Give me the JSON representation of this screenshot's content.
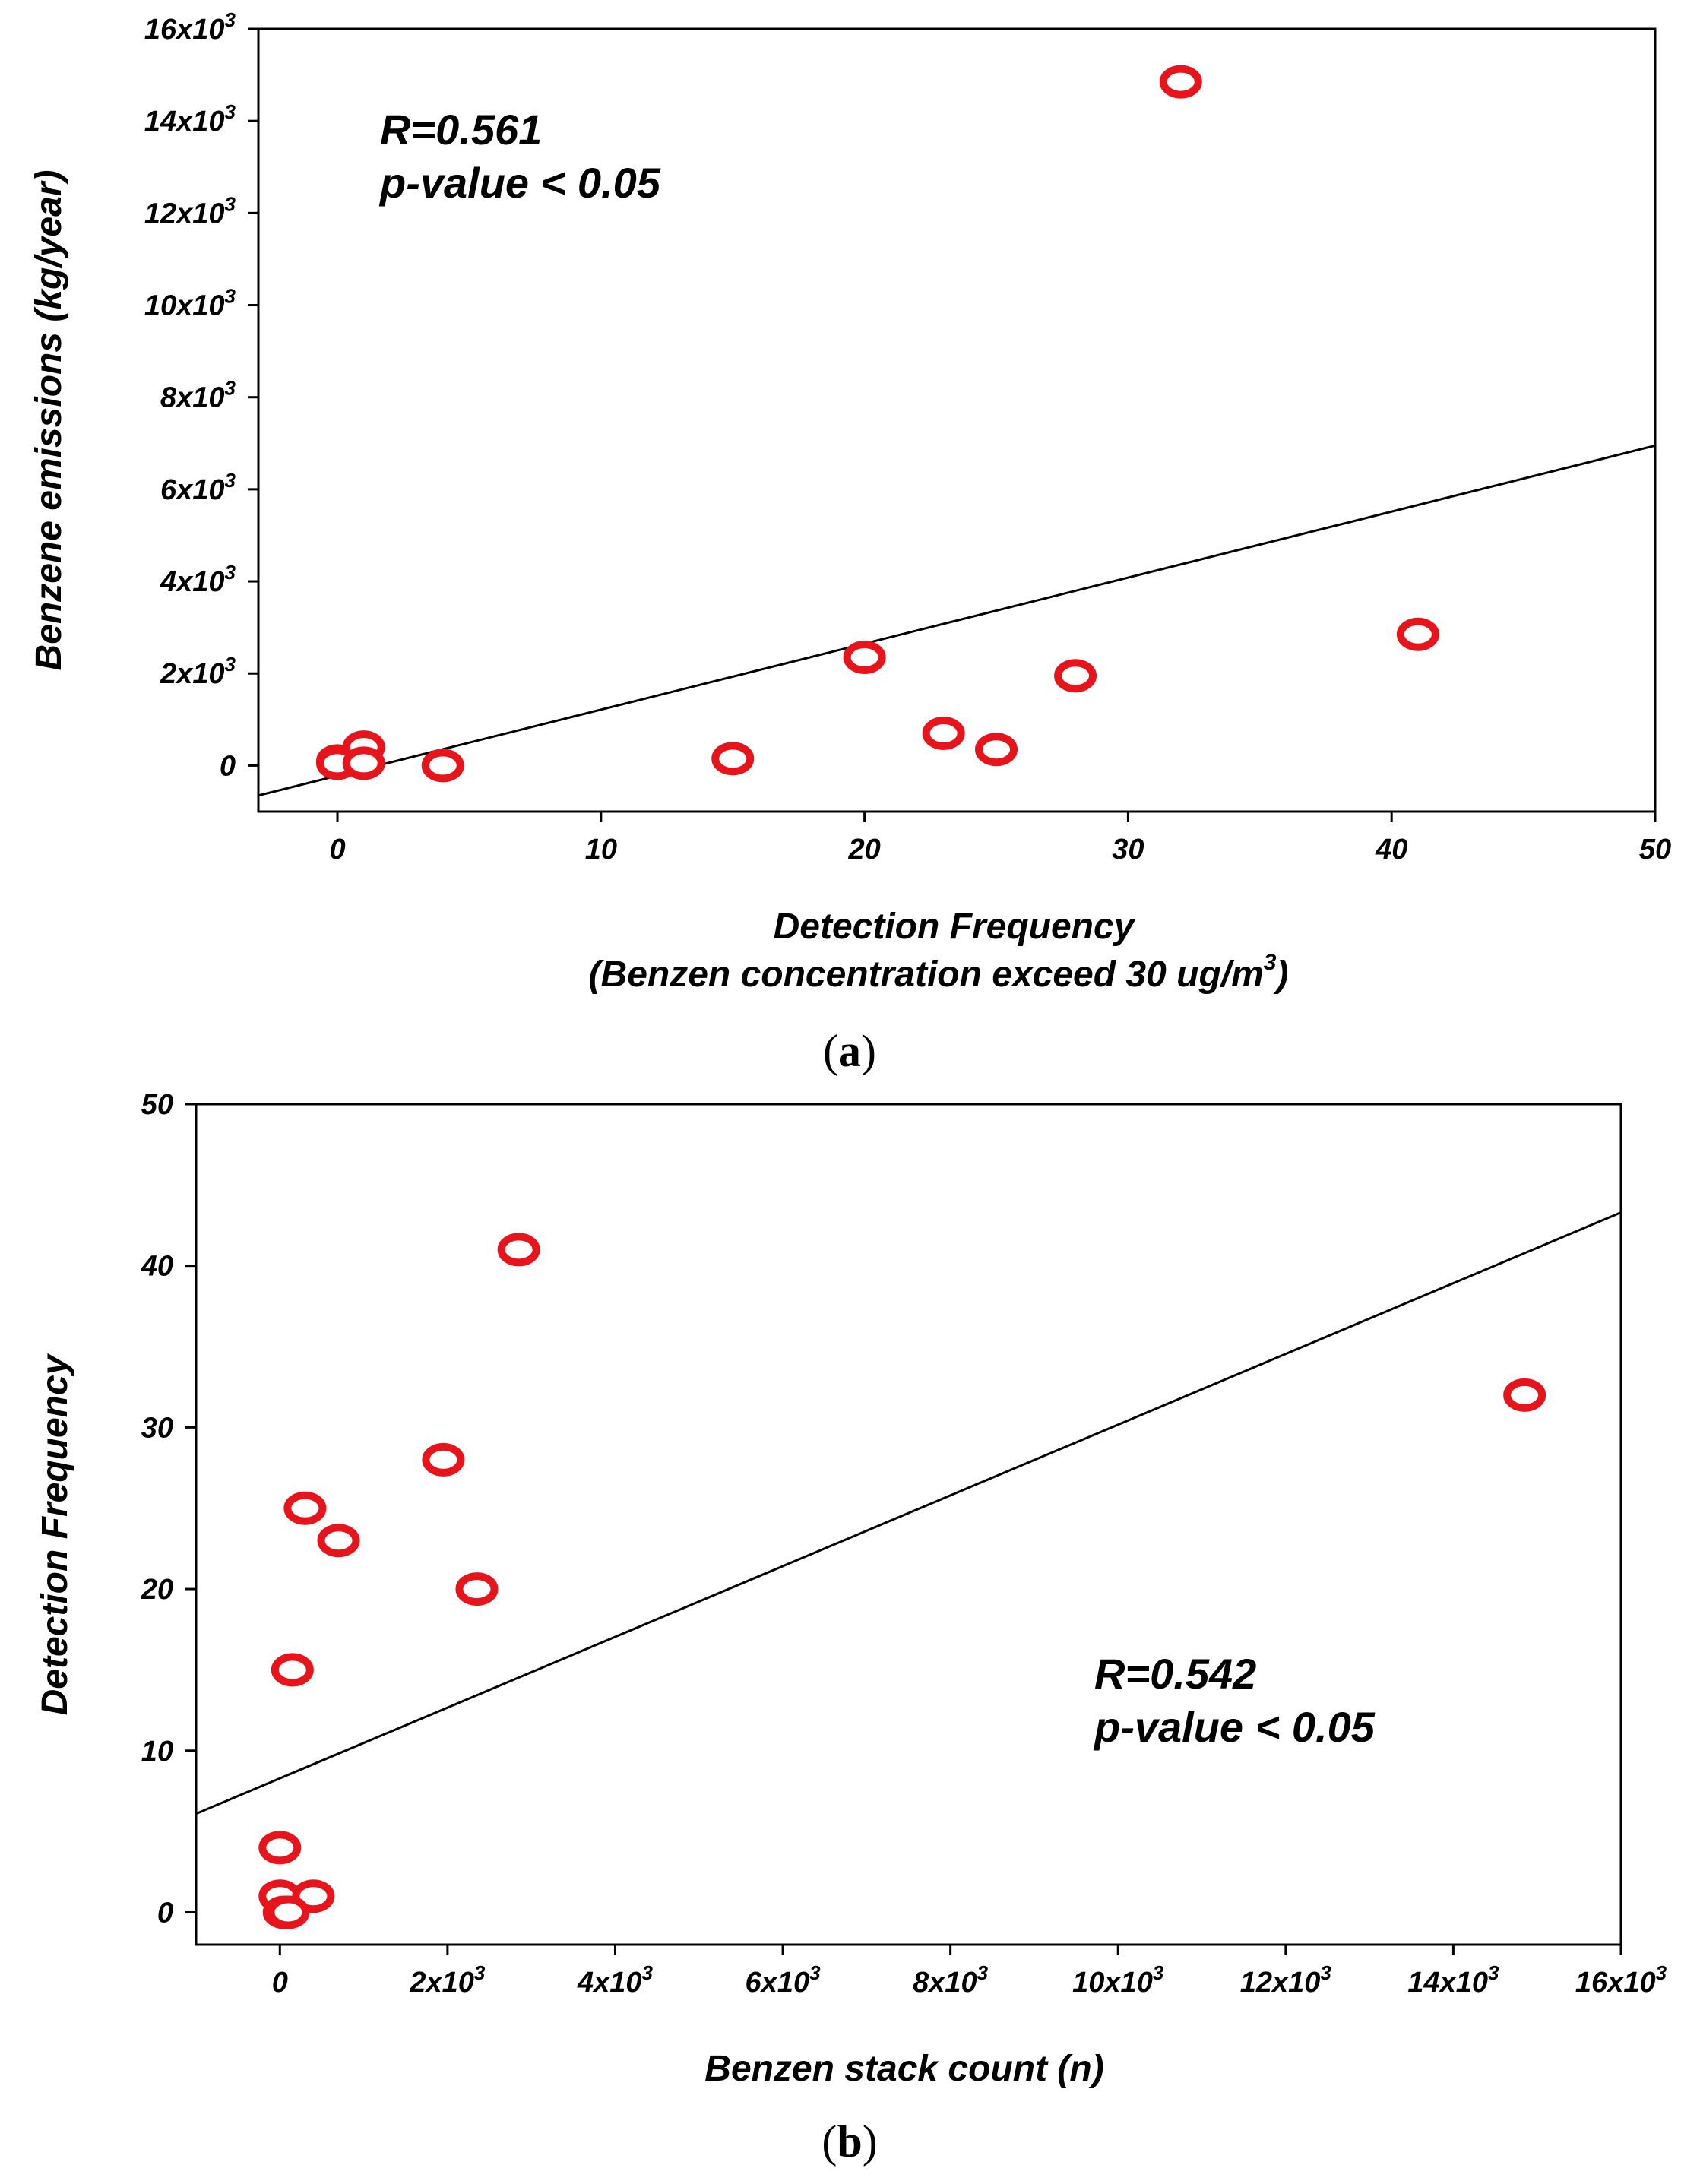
{
  "chart_data": [
    {
      "type": "scatter",
      "panel_label": "a",
      "xlabel": "Detection Frequency",
      "xlabel_line2": "(Benzen concentration exceed 30 ug/m",
      "xlabel_line2_sup": "3",
      "xlabel_line2_end": ")",
      "ylabel": "Benzene emissions (kg/year)",
      "xlim": [
        -3,
        50
      ],
      "ylim": [
        -1000,
        16000
      ],
      "x_ticks": [
        0,
        10,
        20,
        30,
        40,
        50
      ],
      "x_tick_labels": [
        "0",
        "10",
        "20",
        "30",
        "40",
        "50"
      ],
      "y_ticks": [
        0,
        2000,
        4000,
        6000,
        8000,
        10000,
        12000,
        14000,
        16000
      ],
      "y_tick_labels": [
        {
          "base": "0",
          "exp": ""
        },
        {
          "base": "2x10",
          "exp": "3"
        },
        {
          "base": "4x10",
          "exp": "3"
        },
        {
          "base": "6x10",
          "exp": "3"
        },
        {
          "base": "8x10",
          "exp": "3"
        },
        {
          "base": "10x10",
          "exp": "3"
        },
        {
          "base": "12x10",
          "exp": "3"
        },
        {
          "base": "14x10",
          "exp": "3"
        },
        {
          "base": "16x10",
          "exp": "3"
        }
      ],
      "points": [
        {
          "x": 0,
          "y": 100
        },
        {
          "x": 0,
          "y": 50
        },
        {
          "x": 1,
          "y": 400
        },
        {
          "x": 1,
          "y": 50
        },
        {
          "x": 4,
          "y": 0
        },
        {
          "x": 15,
          "y": 150
        },
        {
          "x": 20,
          "y": 2350
        },
        {
          "x": 23,
          "y": 700
        },
        {
          "x": 25,
          "y": 350
        },
        {
          "x": 28,
          "y": 1950
        },
        {
          "x": 32,
          "y": 14850
        },
        {
          "x": 41,
          "y": 2850
        }
      ],
      "regression": {
        "x": [
          -3,
          50
        ],
        "y": [
          -650,
          6950
        ]
      },
      "annotation": {
        "r_text": "R=0.561",
        "p_text": "p-value < 0.05"
      },
      "marker_color": "#e8141b",
      "line_color": "#000000"
    },
    {
      "type": "scatter",
      "panel_label": "b",
      "xlabel": "Benzen stack count (n)",
      "ylabel": "Detection Frequency",
      "xlim": [
        -1000,
        16000
      ],
      "ylim": [
        -2,
        50
      ],
      "x_ticks": [
        0,
        2000,
        4000,
        6000,
        8000,
        10000,
        12000,
        14000,
        16000
      ],
      "x_tick_labels": [
        {
          "base": "0",
          "exp": ""
        },
        {
          "base": "2x10",
          "exp": "3"
        },
        {
          "base": "4x10",
          "exp": "3"
        },
        {
          "base": "6x10",
          "exp": "3"
        },
        {
          "base": "8x10",
          "exp": "3"
        },
        {
          "base": "10x10",
          "exp": "3"
        },
        {
          "base": "12x10",
          "exp": "3"
        },
        {
          "base": "14x10",
          "exp": "3"
        },
        {
          "base": "16x10",
          "exp": "3"
        }
      ],
      "y_ticks": [
        0,
        10,
        20,
        30,
        40,
        50
      ],
      "y_tick_labels": [
        "0",
        "10",
        "20",
        "30",
        "40",
        "50"
      ],
      "points": [
        {
          "x": 0,
          "y": 4
        },
        {
          "x": 0,
          "y": 1
        },
        {
          "x": 50,
          "y": 0
        },
        {
          "x": 400,
          "y": 1
        },
        {
          "x": 100,
          "y": 0
        },
        {
          "x": 150,
          "y": 15
        },
        {
          "x": 2350,
          "y": 20
        },
        {
          "x": 700,
          "y": 23
        },
        {
          "x": 300,
          "y": 25
        },
        {
          "x": 1950,
          "y": 28
        },
        {
          "x": 14850,
          "y": 32
        },
        {
          "x": 2850,
          "y": 41
        }
      ],
      "regression": {
        "x": [
          -1000,
          16000
        ],
        "y": [
          6.1,
          43.3
        ]
      },
      "annotation": {
        "r_text": "R=0.542",
        "p_text": "p-value < 0.05"
      },
      "marker_color": "#e8141b",
      "line_color": "#000000"
    }
  ]
}
